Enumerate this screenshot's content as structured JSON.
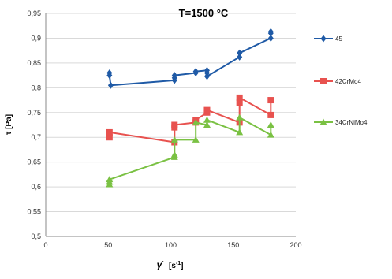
{
  "chart_data": {
    "type": "line",
    "title": "T=1500 °C",
    "xlabel_main": "γ̇",
    "xlabel_unit": "[s-1]",
    "ylabel": "τ [Pa]",
    "xlim": [
      0,
      200
    ],
    "ylim": [
      0.5,
      0.95
    ],
    "xticks": [
      "0",
      "50",
      "100",
      "150",
      "200"
    ],
    "yticks": [
      "0,5",
      "0,55",
      "0,6",
      "0,65",
      "0,7",
      "0,75",
      "0,8",
      "0,85",
      "0,9",
      "0,95"
    ],
    "grid": "horizontal",
    "legend_position": "right",
    "series": [
      {
        "name": "45",
        "color": "#1f5aa6",
        "marker": "diamond",
        "points": [
          [
            51,
            0.83
          ],
          [
            51,
            0.825
          ],
          [
            52,
            0.805
          ],
          [
            103,
            0.815
          ],
          [
            103,
            0.82
          ],
          [
            103,
            0.825
          ],
          [
            120,
            0.83
          ],
          [
            120,
            0.833
          ],
          [
            129,
            0.835
          ],
          [
            129,
            0.83
          ],
          [
            129,
            0.823
          ],
          [
            155,
            0.862
          ],
          [
            155,
            0.87
          ],
          [
            180,
            0.9
          ],
          [
            180,
            0.91
          ],
          [
            180,
            0.913
          ]
        ]
      },
      {
        "name": "42CrMo4",
        "color": "#e8524f",
        "marker": "square",
        "points": [
          [
            51,
            0.7
          ],
          [
            51,
            0.71
          ],
          [
            103,
            0.69
          ],
          [
            103,
            0.72
          ],
          [
            103,
            0.725
          ],
          [
            120,
            0.73
          ],
          [
            120,
            0.735
          ],
          [
            129,
            0.75
          ],
          [
            129,
            0.755
          ],
          [
            155,
            0.73
          ],
          [
            155,
            0.77
          ],
          [
            155,
            0.78
          ],
          [
            180,
            0.745
          ],
          [
            180,
            0.775
          ]
        ]
      },
      {
        "name": "34CrNiMo4",
        "color": "#7ac143",
        "marker": "triangle",
        "points": [
          [
            51,
            0.605
          ],
          [
            51,
            0.61
          ],
          [
            51,
            0.615
          ],
          [
            103,
            0.66
          ],
          [
            103,
            0.665
          ],
          [
            103,
            0.695
          ],
          [
            120,
            0.695
          ],
          [
            120,
            0.73
          ],
          [
            129,
            0.725
          ],
          [
            129,
            0.735
          ],
          [
            155,
            0.71
          ],
          [
            155,
            0.74
          ],
          [
            180,
            0.705
          ],
          [
            180,
            0.725
          ]
        ]
      }
    ]
  }
}
